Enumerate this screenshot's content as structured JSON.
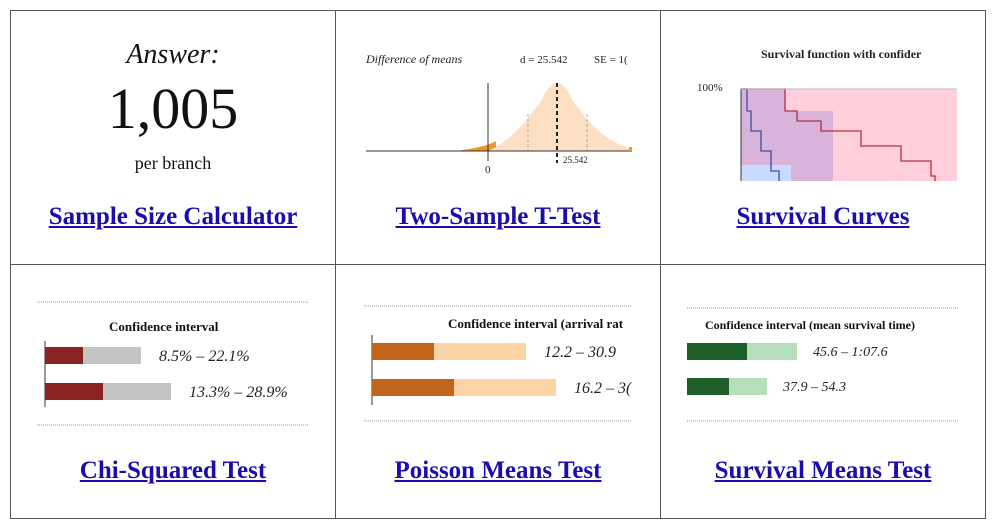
{
  "tiles": [
    {
      "link": "Sample Size Calculator",
      "answer_label": "Answer:",
      "answer_value": "1,005",
      "answer_unit": "per branch"
    },
    {
      "link": "Two-Sample T-Test",
      "chart_title": "Difference of means",
      "d_label": "d = 25.542",
      "se_label": "SE = 1(",
      "zero_tick": "0",
      "d_tick": "25.542"
    },
    {
      "link": "Survival Curves",
      "chart_title": "Survival function with confider",
      "y_tick": "100%"
    },
    {
      "link": "Chi-Squared Test",
      "ci_title": "Confidence interval",
      "ranges": [
        "8.5% – 22.1%",
        "13.3% – 28.9%"
      ],
      "colors": {
        "dark": "#8b2323",
        "light": "#c4c4c4"
      }
    },
    {
      "link": "Poisson Means Test",
      "ci_title": "Confidence interval (arrival rat",
      "ranges": [
        "12.2 – 30.9",
        "16.2 – 3("
      ],
      "colors": {
        "dark": "#c0651b",
        "light": "#fdd4a3"
      }
    },
    {
      "link": "Survival Means Test",
      "ci_title": "Confidence interval (mean survival time)",
      "ranges": [
        "45.6 – 1:07.6",
        "37.9 – 54.3"
      ],
      "colors": {
        "dark": "#1e5e28",
        "light": "#b5dfbb"
      }
    }
  ]
}
